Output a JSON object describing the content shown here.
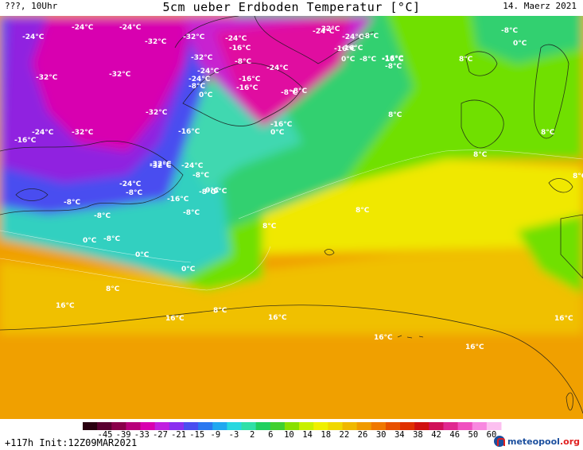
{
  "header": {
    "left": "???, 10Uhr",
    "title": "5cm ueber Erdboden Temperatur [°C]",
    "date": "14. Maerz 2021"
  },
  "footer": {
    "run_info": "+117h Init:12Z09MAR2021",
    "logo_text": "meteopool",
    "logo_suffix": ".org"
  },
  "colorscale": {
    "ticks": [
      "-45",
      "-39",
      "-33",
      "-27",
      "-21",
      "-15",
      "-9",
      "-3",
      "2",
      "6",
      "10",
      "14",
      "18",
      "22",
      "26",
      "30",
      "34",
      "38",
      "42",
      "46",
      "50",
      "60"
    ],
    "colors": [
      "#2a0010",
      "#5a0030",
      "#8a004a",
      "#b8007a",
      "#d800b0",
      "#c020e0",
      "#8a2ff0",
      "#4a4ef0",
      "#2a78f0",
      "#20a8f0",
      "#28d8e0",
      "#30e0a8",
      "#20d060",
      "#40d030",
      "#88e000",
      "#c8f000",
      "#f0f000",
      "#f0d800",
      "#f0b800",
      "#f09a00",
      "#f07800",
      "#e85000",
      "#e03000",
      "#d01010",
      "#d0105a",
      "#e02890",
      "#f050c0",
      "#f888e0",
      "#fcc0f0"
    ]
  },
  "map_labels": [
    {
      "text": "-24°C"
    },
    {
      "text": "-24°C"
    },
    {
      "text": "-24°C"
    },
    {
      "text": "-32°C"
    },
    {
      "text": "-32°C"
    },
    {
      "text": "-24°C"
    },
    {
      "text": "-16°C"
    },
    {
      "text": "-32°C"
    },
    {
      "text": "-8°C"
    },
    {
      "text": "-24°C"
    },
    {
      "text": "-32°C"
    },
    {
      "text": "-24°C"
    },
    {
      "text": "-16°C"
    },
    {
      "text": "-8°C"
    },
    {
      "text": "-32°C"
    },
    {
      "text": "-24°C"
    },
    {
      "text": "-8°C"
    },
    {
      "text": "-16°C"
    },
    {
      "text": "-8°C"
    },
    {
      "text": "-16°C"
    },
    {
      "text": "0°C"
    },
    {
      "text": "-32°C"
    },
    {
      "text": "-24°C"
    },
    {
      "text": "-32°C"
    },
    {
      "text": "-8°C"
    },
    {
      "text": "0°C"
    },
    {
      "text": "-32°C"
    },
    {
      "text": "-32°C"
    },
    {
      "text": "-24°C"
    },
    {
      "text": "-16°C"
    },
    {
      "text": "-24°C"
    },
    {
      "text": "-16°C"
    },
    {
      "text": "-32°C"
    },
    {
      "text": "-24°C"
    },
    {
      "text": "-8°C"
    },
    {
      "text": "-24°C"
    },
    {
      "text": "-8°C"
    },
    {
      "text": "-16°C"
    },
    {
      "text": "-8°C"
    },
    {
      "text": "0°C"
    },
    {
      "text": "-16°C"
    },
    {
      "text": "-8°C"
    },
    {
      "text": "-8°C"
    },
    {
      "text": "0°C"
    },
    {
      "text": "-8°C"
    },
    {
      "text": "0°C"
    },
    {
      "text": "0°C"
    },
    {
      "text": "-8°C"
    },
    {
      "text": "-16°C"
    },
    {
      "text": "0°C"
    },
    {
      "text": "8°C"
    },
    {
      "text": "8°C"
    },
    {
      "text": "8°C"
    },
    {
      "text": "16°C"
    },
    {
      "text": "16°C"
    },
    {
      "text": "8°C"
    },
    {
      "text": "16°C"
    },
    {
      "text": "16°C"
    },
    {
      "text": "16°C"
    },
    {
      "text": "16°C"
    },
    {
      "text": "8°C"
    },
    {
      "text": "8°C"
    },
    {
      "text": "8°C"
    },
    {
      "text": "8°C"
    },
    {
      "text": "-8°C"
    },
    {
      "text": "0°C"
    },
    {
      "text": "-16°C"
    },
    {
      "text": "-8°C"
    },
    {
      "text": "0°C"
    },
    {
      "text": "-16°C"
    },
    {
      "text": "-8°C"
    },
    {
      "text": "8°C"
    }
  ]
}
